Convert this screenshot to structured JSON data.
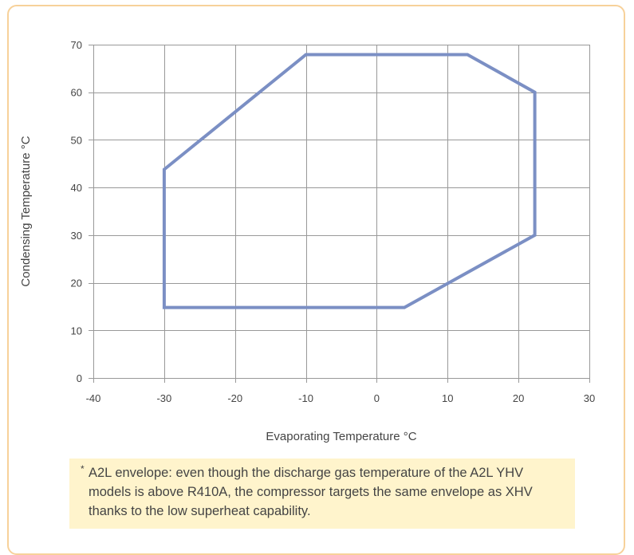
{
  "chart_data": {
    "type": "line",
    "title": "",
    "xlabel": "Evaporating Temperature °C",
    "ylabel": "Condensing Temperature °C",
    "xlim": [
      -40,
      30
    ],
    "ylim": [
      0,
      70
    ],
    "xticks": [
      -40,
      -30,
      -20,
      -10,
      0,
      10,
      20,
      30
    ],
    "yticks": [
      0,
      10,
      20,
      30,
      40,
      50,
      60,
      70
    ],
    "grid": true,
    "series": [
      {
        "color": "#7b8fc4",
        "closed": true,
        "x": [
          -30,
          -10,
          12.8,
          22.3,
          22.3,
          3.9,
          -30,
          -30
        ],
        "y": [
          43.8,
          67.9,
          67.9,
          60,
          30,
          14.8,
          14.8,
          43.8
        ]
      }
    ]
  },
  "note": {
    "marker": "*",
    "text": "A2L envelope: even though the discharge gas temperature of the A2L YHV models is above R410A, the compressor targets the same envelope as XHV thanks to the low superheat capability."
  },
  "colors": {
    "frame_border": "#f7d19a",
    "note_background": "#fff4cc",
    "grid": "#999999",
    "envelope_line": "#7b8fc4"
  }
}
